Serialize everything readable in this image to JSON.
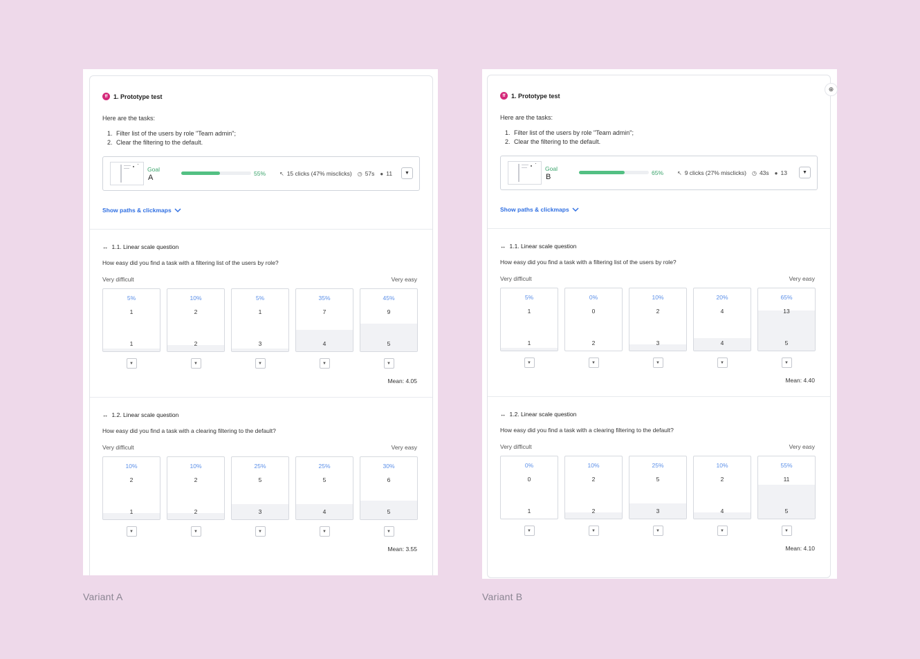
{
  "variants": [
    {
      "caption": "Variant A",
      "test_title": "1. Prototype test",
      "test_icon": "ff",
      "intro": "Here are the tasks:",
      "tasks": [
        "Filter list of the users by role \"Team admin\";",
        "Clear the filtering to the default."
      ],
      "goal": {
        "label": "Goal",
        "variant": "A",
        "success_pct": 55,
        "success_text": "55%",
        "clicks": "15 clicks (47% misclicks)",
        "time": "57s",
        "users": "11"
      },
      "show_paths": "Show paths & clickmaps",
      "questions": [
        {
          "title": "1.1. Linear scale question",
          "text": "How easy did you find a task with a filtering list of the users by role?",
          "scale_min_label": "Very difficult",
          "scale_max_label": "Very easy",
          "options": [
            {
              "pct": "5%",
              "count": "1",
              "value": "1",
              "fraction": 0.05
            },
            {
              "pct": "10%",
              "count": "2",
              "value": "2",
              "fraction": 0.1
            },
            {
              "pct": "5%",
              "count": "1",
              "value": "3",
              "fraction": 0.05
            },
            {
              "pct": "35%",
              "count": "7",
              "value": "4",
              "fraction": 0.35
            },
            {
              "pct": "45%",
              "count": "9",
              "value": "5",
              "fraction": 0.45
            }
          ],
          "mean": "Mean: 4.05"
        },
        {
          "title": "1.2. Linear scale question",
          "text": "How easy did you find a task with a clearing filtering to the default?",
          "scale_min_label": "Very difficult",
          "scale_max_label": "Very easy",
          "options": [
            {
              "pct": "10%",
              "count": "2",
              "value": "1",
              "fraction": 0.1
            },
            {
              "pct": "10%",
              "count": "2",
              "value": "2",
              "fraction": 0.1
            },
            {
              "pct": "25%",
              "count": "5",
              "value": "3",
              "fraction": 0.25
            },
            {
              "pct": "25%",
              "count": "5",
              "value": "4",
              "fraction": 0.25
            },
            {
              "pct": "30%",
              "count": "6",
              "value": "5",
              "fraction": 0.3
            }
          ],
          "mean": "Mean: 3.55"
        }
      ]
    },
    {
      "caption": "Variant B",
      "test_title": "1. Prototype test",
      "test_icon": "ff",
      "intro": "Here are the tasks:",
      "tasks": [
        "Filter list of the users by role \"Team admin\";",
        "Clear the filtering to the default."
      ],
      "goal": {
        "label": "Goal",
        "variant": "B",
        "success_pct": 65,
        "success_text": "65%",
        "clicks": "9 clicks (27% misclicks)",
        "time": "43s",
        "users": "13"
      },
      "show_paths": "Show paths & clickmaps",
      "questions": [
        {
          "title": "1.1. Linear scale question",
          "text": "How easy did you find a task with a filtering list of the users by role?",
          "scale_min_label": "Very difficult",
          "scale_max_label": "Very easy",
          "options": [
            {
              "pct": "5%",
              "count": "1",
              "value": "1",
              "fraction": 0.05
            },
            {
              "pct": "0%",
              "count": "0",
              "value": "2",
              "fraction": 0.0
            },
            {
              "pct": "10%",
              "count": "2",
              "value": "3",
              "fraction": 0.1
            },
            {
              "pct": "20%",
              "count": "4",
              "value": "4",
              "fraction": 0.2
            },
            {
              "pct": "65%",
              "count": "13",
              "value": "5",
              "fraction": 0.65
            }
          ],
          "mean": "Mean: 4.40"
        },
        {
          "title": "1.2. Linear scale question",
          "text": "How easy did you find a task with a clearing filtering to the default?",
          "scale_min_label": "Very difficult",
          "scale_max_label": "Very easy",
          "options": [
            {
              "pct": "0%",
              "count": "0",
              "value": "1",
              "fraction": 0.0
            },
            {
              "pct": "10%",
              "count": "2",
              "value": "2",
              "fraction": 0.1
            },
            {
              "pct": "25%",
              "count": "5",
              "value": "3",
              "fraction": 0.25
            },
            {
              "pct": "10%",
              "count": "2",
              "value": "4",
              "fraction": 0.1
            },
            {
              "pct": "55%",
              "count": "11",
              "value": "5",
              "fraction": 0.55
            }
          ],
          "mean": "Mean: 4.10"
        }
      ]
    }
  ],
  "colors": {
    "background": "#eed9ea",
    "success": "#53c083",
    "link": "#2f6fe2",
    "pct": "#5b8fe8",
    "brand_icon": "#d4297a"
  },
  "icons": {
    "test": "prototype-test-icon",
    "linear_scale": "linear-scale-icon",
    "filter": "filter-icon",
    "chevron": "chevron-down-icon",
    "add_comment": "add-comment-icon",
    "clicks": "cursor-click-icon",
    "time": "clock-icon",
    "users": "user-icon"
  }
}
